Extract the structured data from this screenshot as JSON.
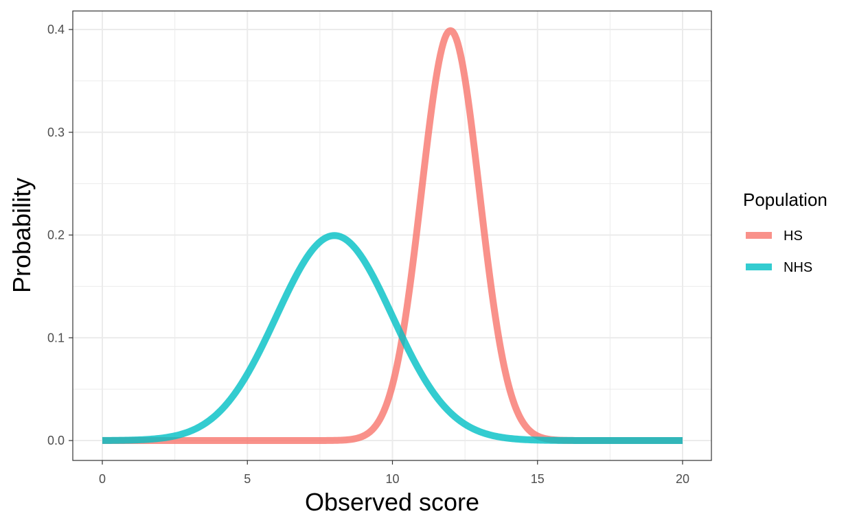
{
  "chart_data": {
    "type": "line",
    "title": "",
    "xlabel": "Observed score",
    "ylabel": "Probability",
    "xlim": [
      0,
      20
    ],
    "ylim": [
      0,
      0.4
    ],
    "x_ticks": [
      0,
      5,
      10,
      15,
      20
    ],
    "x_tick_labels": [
      "0",
      "5",
      "10",
      "15",
      "20"
    ],
    "y_ticks": [
      0,
      0.1,
      0.2,
      0.3,
      0.4
    ],
    "y_tick_labels": [
      "0.0",
      "0.1",
      "0.2",
      "0.3",
      "0.4"
    ],
    "grid": true,
    "legend": {
      "title": "Population",
      "placement": "right"
    },
    "series": [
      {
        "name": "HS",
        "color": "#f8766d",
        "distribution": "normal",
        "mean": 12,
        "sd": 1,
        "x": [
          0,
          1,
          2,
          3,
          4,
          5,
          6,
          7,
          8,
          9,
          9.5,
          10,
          10.5,
          11,
          11.5,
          12,
          12.5,
          13,
          13.5,
          14,
          14.5,
          15,
          16,
          17,
          18,
          19,
          20
        ],
        "values": [
          0,
          0,
          0,
          0,
          0,
          0,
          0,
          0,
          0.0001,
          0.0044,
          0.0175,
          0.054,
          0.1295,
          0.242,
          0.3521,
          0.3989,
          0.3521,
          0.242,
          0.1295,
          0.054,
          0.0175,
          0.0044,
          0.0001,
          0,
          0,
          0,
          0
        ]
      },
      {
        "name": "NHS",
        "color": "#00bfc4",
        "distribution": "normal",
        "mean": 8,
        "sd": 2,
        "x": [
          0,
          1,
          2,
          3,
          4,
          5,
          6,
          7,
          8,
          9,
          10,
          11,
          12,
          13,
          14,
          15,
          16,
          17,
          18,
          19,
          20
        ],
        "values": [
          0.0001,
          0.0004,
          0.0022,
          0.0088,
          0.027,
          0.0648,
          0.121,
          0.176,
          0.1995,
          0.176,
          0.121,
          0.0648,
          0.027,
          0.0088,
          0.0022,
          0.0004,
          0.0001,
          0,
          0,
          0,
          0
        ]
      }
    ]
  }
}
